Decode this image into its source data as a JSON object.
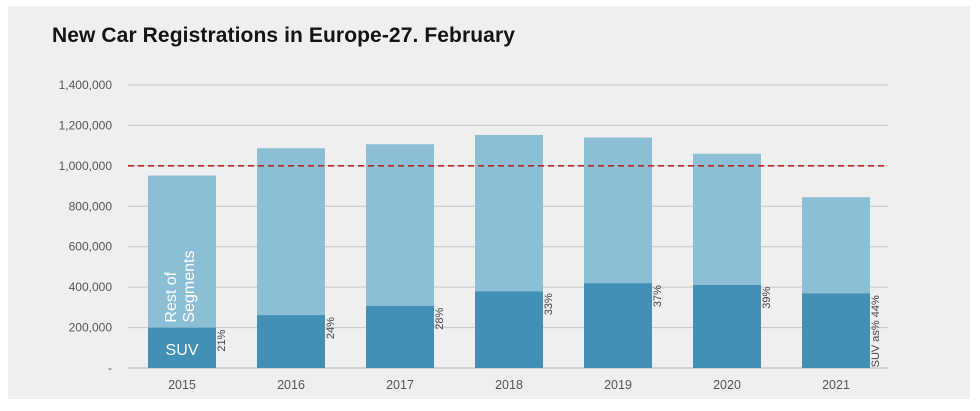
{
  "chart_data": {
    "type": "bar",
    "stacked": true,
    "title": "New Car Registrations in Europe-27. February",
    "categories": [
      "2015",
      "2016",
      "2017",
      "2018",
      "2019",
      "2020",
      "2021"
    ],
    "series": [
      {
        "name": "SUV",
        "values": [
          200000,
          262000,
          308000,
          380000,
          420000,
          412000,
          370000
        ],
        "color": "#4290b5"
      },
      {
        "name": "Rest of Segments",
        "values": [
          752000,
          825000,
          799000,
          773000,
          720000,
          648000,
          475000
        ],
        "color": "#8cbfd6"
      }
    ],
    "share_labels": [
      "21%",
      "24%",
      "28%",
      "33%",
      "37%",
      "39%",
      "SUV as% 44%"
    ],
    "y_ticks": [
      "-",
      "200,000",
      "400,000",
      "600,000",
      "800,000",
      "1,000,000",
      "1,200,000",
      "1,400,000"
    ],
    "ylim": [
      0,
      1400000
    ],
    "reference_line": {
      "value": 1000000,
      "color": "#b8262b",
      "style": "dashed"
    },
    "grid": true,
    "xlabel": "",
    "ylabel": ""
  }
}
